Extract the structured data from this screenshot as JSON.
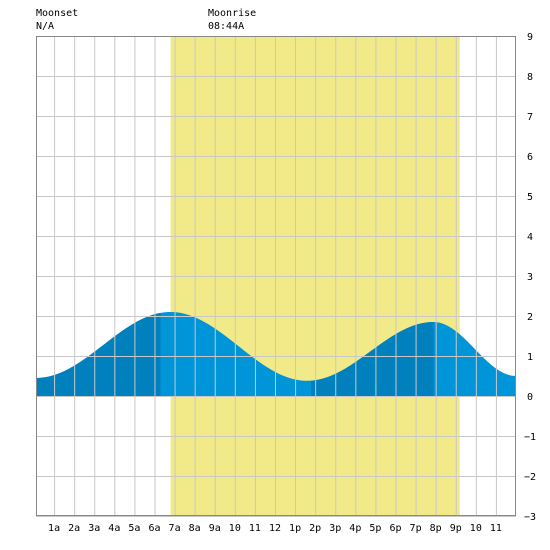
{
  "header": {
    "moonset_label": "Moonset",
    "moonset_value": "N/A",
    "moonrise_label": "Moonrise",
    "moonrise_value": "08:44A"
  },
  "colors": {
    "daylight": "#f2ea88",
    "tide_light": "#0095d8",
    "tide_dark": "#0080bc",
    "grid": "#c8c8c8",
    "background": "#ffffff"
  },
  "chart_data": {
    "type": "area",
    "title": "",
    "xlabel": "",
    "ylabel": "",
    "xlim": [
      -0.9,
      23.0
    ],
    "ylim": [
      -3,
      9
    ],
    "yticks": [
      -3,
      -2,
      -1,
      0,
      1,
      2,
      3,
      4,
      5,
      6,
      7,
      8,
      9
    ],
    "xtick_labels": [
      "1a",
      "2a",
      "3a",
      "4a",
      "5a",
      "6a",
      "7a",
      "8a",
      "9a",
      "10",
      "11",
      "12",
      "1p",
      "2p",
      "3p",
      "4p",
      "5p",
      "6p",
      "7p",
      "8p",
      "9p",
      "10",
      "11"
    ],
    "grid": true,
    "daylight": {
      "start_hour": 5.8,
      "end_hour": 20.2
    },
    "tide_extremes": [
      {
        "hour": -0.9,
        "height": 0.45
      },
      {
        "hour": 5.8,
        "height": 2.1
      },
      {
        "hour": 12.6,
        "height": 0.38
      },
      {
        "hour": 18.9,
        "height": 1.85
      },
      {
        "hour": 23.0,
        "height": 0.5
      }
    ],
    "dark_bands": [
      {
        "start_hour": -0.9,
        "end_hour": 5.3
      },
      {
        "start_hour": 12.8,
        "end_hour": 18.9
      }
    ]
  }
}
